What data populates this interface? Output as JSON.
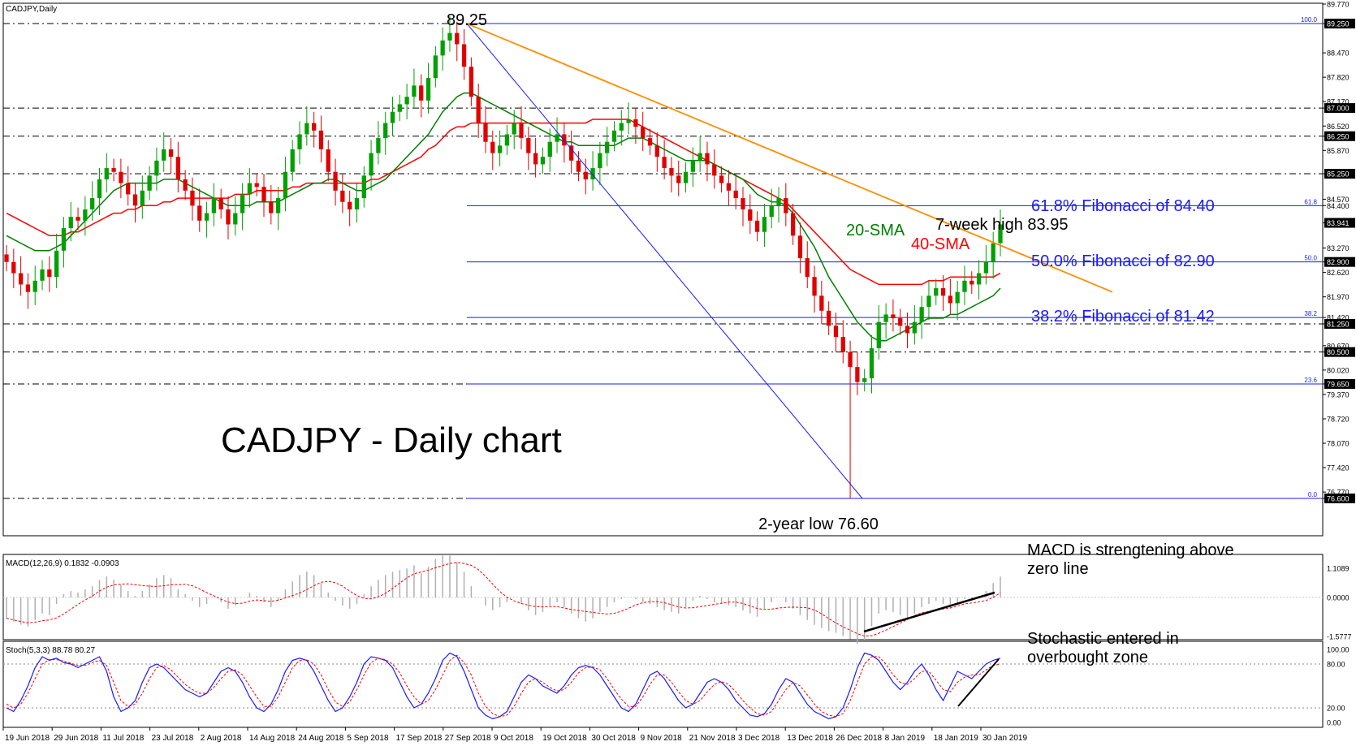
{
  "chart_data": {
    "type": "candlestick",
    "symbol_label": "CADJPY,Daily",
    "title": "CADJPY - Daily chart",
    "y_ticks": [
      "89.770",
      "89.250",
      "88.470",
      "87.820",
      "87.170",
      "87.000",
      "86.520",
      "86.250",
      "85.870",
      "85.250",
      "84.570",
      "84.400",
      "83.941",
      "83.270",
      "82.900",
      "82.620",
      "81.970",
      "81.420",
      "81.250",
      "80.670",
      "80.500",
      "80.020",
      "79.650",
      "79.370",
      "78.720",
      "78.070",
      "77.420",
      "76.770",
      "76.600"
    ],
    "highlighted_levels": [
      "89.250",
      "87.000",
      "86.250",
      "85.250",
      "83.941",
      "82.900",
      "81.250",
      "80.500",
      "79.650",
      "76.600"
    ],
    "dashed_levels": [
      89.25,
      87.0,
      86.25,
      85.25,
      81.25,
      80.5,
      79.65,
      76.6
    ],
    "x_labels": [
      "19 Jun 2018",
      "29 Jun 2018",
      "11 Jul 2018",
      "23 Jul 2018",
      "2 Aug 2018",
      "14 Aug 2018",
      "24 Aug 2018",
      "5 Sep 2018",
      "17 Sep 2018",
      "27 Sep 2018",
      "9 Oct 2018",
      "19 Oct 2018",
      "30 Oct 2018",
      "9 Nov 2018",
      "21 Nov 2018",
      "3 Dec 2018",
      "13 Dec 2018",
      "26 Dec 2018",
      "8 Jan 2019",
      "18 Jan 2019",
      "30 Jan 2019"
    ],
    "close_series": [
      82.9,
      82.6,
      82.3,
      82.1,
      82.4,
      82.7,
      82.5,
      83.2,
      83.8,
      84.1,
      84.0,
      84.3,
      84.6,
      85.1,
      85.4,
      85.3,
      85.0,
      84.7,
      84.4,
      84.8,
      85.2,
      85.6,
      85.9,
      85.7,
      85.1,
      84.8,
      84.4,
      84.0,
      84.2,
      84.6,
      84.3,
      83.9,
      84.2,
      84.7,
      85.0,
      84.9,
      84.5,
      84.2,
      84.6,
      85.3,
      85.9,
      86.3,
      86.6,
      86.4,
      85.9,
      85.3,
      84.8,
      84.5,
      84.3,
      84.6,
      85.2,
      85.8,
      86.2,
      86.6,
      86.9,
      87.1,
      87.3,
      87.6,
      87.2,
      87.8,
      88.4,
      88.8,
      89.0,
      88.7,
      88.1,
      87.3,
      86.6,
      86.1,
      85.8,
      86.0,
      86.3,
      86.6,
      86.2,
      85.8,
      85.5,
      85.7,
      86.1,
      86.3,
      86.0,
      85.6,
      85.3,
      85.1,
      85.4,
      85.8,
      86.1,
      86.4,
      86.6,
      86.7,
      86.5,
      86.2,
      86.0,
      85.7,
      85.4,
      85.2,
      85.0,
      85.3,
      85.6,
      85.8,
      85.5,
      85.2,
      85.0,
      84.8,
      84.6,
      84.3,
      84.0,
      83.7,
      84.1,
      84.4,
      84.6,
      84.2,
      83.6,
      83.0,
      82.5,
      82.0,
      81.6,
      81.2,
      80.9,
      80.5,
      80.1,
      79.7,
      79.8,
      80.6,
      81.3,
      81.5,
      81.4,
      81.2,
      81.0,
      81.3,
      81.7,
      82.0,
      82.2,
      82.0,
      81.8,
      82.1,
      82.4,
      82.3,
      82.6,
      82.9,
      83.4,
      83.9
    ],
    "lows": {
      "two_year_low": 76.6,
      "spike_index": 118
    },
    "sma20": [
      83.6,
      83.5,
      83.4,
      83.3,
      83.2,
      83.2,
      83.2,
      83.3,
      83.4,
      83.6,
      83.8,
      84.0,
      84.2,
      84.4,
      84.6,
      84.8,
      84.9,
      85.0,
      85.0,
      85.0,
      85.0,
      85.0,
      85.1,
      85.1,
      85.1,
      85.0,
      84.9,
      84.8,
      84.7,
      84.6,
      84.5,
      84.4,
      84.4,
      84.4,
      84.4,
      84.5,
      84.5,
      84.5,
      84.5,
      84.6,
      84.7,
      84.8,
      84.9,
      85.0,
      85.0,
      85.1,
      85.1,
      85.0,
      84.9,
      84.8,
      84.8,
      84.9,
      85.0,
      85.1,
      85.3,
      85.5,
      85.7,
      85.9,
      86.1,
      86.3,
      86.6,
      86.9,
      87.1,
      87.3,
      87.4,
      87.4,
      87.3,
      87.2,
      87.1,
      87.0,
      86.9,
      86.8,
      86.7,
      86.6,
      86.5,
      86.4,
      86.3,
      86.2,
      86.1,
      86.1,
      86.0,
      86.0,
      86.0,
      86.0,
      86.0,
      86.0,
      86.1,
      86.2,
      86.2,
      86.2,
      86.1,
      86.0,
      85.9,
      85.8,
      85.7,
      85.6,
      85.6,
      85.6,
      85.6,
      85.5,
      85.4,
      85.3,
      85.2,
      85.1,
      84.9,
      84.7,
      84.6,
      84.5,
      84.5,
      84.4,
      84.2,
      83.9,
      83.6,
      83.3,
      82.9,
      82.5,
      82.2,
      81.9,
      81.6,
      81.3,
      81.1,
      80.9,
      80.8,
      80.8,
      80.9,
      81.0,
      81.1,
      81.2,
      81.3,
      81.4,
      81.4,
      81.4,
      81.5,
      81.5,
      81.6,
      81.7,
      81.8,
      81.9,
      82.0,
      82.2
    ],
    "sma40": [
      84.2,
      84.1,
      84.0,
      83.9,
      83.8,
      83.7,
      83.6,
      83.6,
      83.6,
      83.7,
      83.7,
      83.8,
      83.9,
      84.0,
      84.1,
      84.2,
      84.2,
      84.3,
      84.3,
      84.4,
      84.4,
      84.4,
      84.5,
      84.5,
      84.6,
      84.6,
      84.6,
      84.6,
      84.6,
      84.6,
      84.6,
      84.6,
      84.7,
      84.7,
      84.7,
      84.8,
      84.8,
      84.8,
      84.8,
      84.8,
      84.9,
      84.9,
      85.0,
      85.0,
      85.0,
      85.0,
      85.0,
      85.0,
      85.0,
      85.0,
      85.0,
      85.1,
      85.1,
      85.2,
      85.3,
      85.4,
      85.5,
      85.6,
      85.7,
      85.9,
      86.0,
      86.2,
      86.4,
      86.5,
      86.5,
      86.6,
      86.6,
      86.6,
      86.6,
      86.6,
      86.6,
      86.6,
      86.6,
      86.6,
      86.6,
      86.6,
      86.6,
      86.6,
      86.6,
      86.6,
      86.6,
      86.6,
      86.7,
      86.7,
      86.7,
      86.7,
      86.7,
      86.7,
      86.6,
      86.5,
      86.4,
      86.3,
      86.2,
      86.1,
      86.0,
      85.9,
      85.8,
      85.7,
      85.6,
      85.5,
      85.4,
      85.3,
      85.2,
      85.1,
      85.0,
      84.9,
      84.8,
      84.7,
      84.6,
      84.5,
      84.3,
      84.1,
      83.9,
      83.7,
      83.5,
      83.3,
      83.1,
      82.9,
      82.7,
      82.6,
      82.5,
      82.4,
      82.3,
      82.3,
      82.3,
      82.3,
      82.3,
      82.3,
      82.3,
      82.4,
      82.4,
      82.4,
      82.5,
      82.5,
      82.5,
      82.5,
      82.5,
      82.5,
      82.5,
      82.6
    ],
    "annotations": {
      "high_label": "89.25",
      "low_label": "2-year low 76.60",
      "week_high": "7-week high 83.95",
      "sma20_label": "20-SMA",
      "sma40_label": "40-SMA"
    },
    "fibonacci": [
      {
        "pct": "100.0",
        "price": 89.25,
        "label": ""
      },
      {
        "pct": "61.8",
        "price": 84.4,
        "label": "61.8% Fibonacci of 84.40"
      },
      {
        "pct": "50.0",
        "price": 82.9,
        "label": "50.0% Fibonacci of 82.90"
      },
      {
        "pct": "38.2",
        "price": 81.42,
        "label": "38.2% Fibonacci of 81.42"
      },
      {
        "pct": "23.6",
        "price": 79.65,
        "label": ""
      },
      {
        "pct": "0.0",
        "price": 76.6,
        "label": ""
      }
    ],
    "macd": {
      "title": "MACD(12,26,9) 0.1832 -0.0903",
      "y_ticks": [
        "1.1089",
        "0.0000",
        "-1.5777"
      ],
      "note_lines": [
        "MACD is strengtening above",
        "zero line"
      ]
    },
    "stoch": {
      "title": "Stoch(5,3,3) 88.78 80.27",
      "y_ticks": [
        "100.00",
        "80.00",
        "20.00",
        "0.00"
      ],
      "note_lines": [
        "Stochastic entered in",
        "overbought zone"
      ],
      "k": [
        20,
        15,
        30,
        50,
        75,
        90,
        85,
        88,
        82,
        80,
        75,
        80,
        85,
        90,
        70,
        35,
        15,
        20,
        30,
        55,
        75,
        80,
        75,
        65,
        55,
        45,
        40,
        35,
        40,
        55,
        70,
        75,
        70,
        55,
        35,
        20,
        15,
        25,
        45,
        70,
        85,
        88,
        85,
        70,
        50,
        30,
        15,
        20,
        35,
        55,
        80,
        90,
        88,
        85,
        75,
        55,
        35,
        20,
        25,
        40,
        60,
        85,
        95,
        90,
        70,
        45,
        20,
        10,
        5,
        8,
        15,
        35,
        55,
        65,
        60,
        50,
        45,
        40,
        50,
        65,
        75,
        78,
        75,
        65,
        50,
        35,
        20,
        15,
        25,
        45,
        65,
        70,
        60,
        45,
        30,
        20,
        25,
        40,
        55,
        60,
        55,
        45,
        30,
        20,
        10,
        8,
        12,
        25,
        45,
        60,
        55,
        40,
        25,
        15,
        10,
        5,
        8,
        20,
        45,
        75,
        95,
        92,
        85,
        70,
        55,
        45,
        55,
        70,
        80,
        65,
        45,
        30,
        50,
        70,
        65,
        60,
        70,
        80,
        85,
        88
      ],
      "d": [
        25,
        20,
        25,
        40,
        60,
        80,
        86,
        86,
        84,
        81,
        78,
        78,
        82,
        85,
        78,
        55,
        30,
        22,
        25,
        40,
        60,
        75,
        78,
        72,
        62,
        52,
        45,
        40,
        40,
        48,
        60,
        70,
        72,
        65,
        50,
        35,
        22,
        22,
        35,
        55,
        75,
        85,
        86,
        80,
        65,
        45,
        28,
        22,
        28,
        45,
        65,
        82,
        88,
        86,
        80,
        68,
        50,
        35,
        25,
        30,
        45,
        65,
        85,
        92,
        82,
        65,
        40,
        22,
        12,
        8,
        10,
        22,
        40,
        55,
        60,
        55,
        48,
        43,
        45,
        55,
        68,
        75,
        76,
        72,
        60,
        45,
        32,
        22,
        22,
        35,
        52,
        65,
        65,
        55,
        42,
        30,
        25,
        30,
        42,
        52,
        56,
        52,
        42,
        30,
        20,
        12,
        10,
        15,
        30,
        45,
        55,
        50,
        38,
        25,
        15,
        10,
        8,
        12,
        30,
        55,
        80,
        90,
        90,
        80,
        65,
        55,
        52,
        60,
        70,
        70,
        58,
        45,
        42,
        55,
        62,
        65,
        65,
        72,
        78,
        80
      ]
    }
  }
}
